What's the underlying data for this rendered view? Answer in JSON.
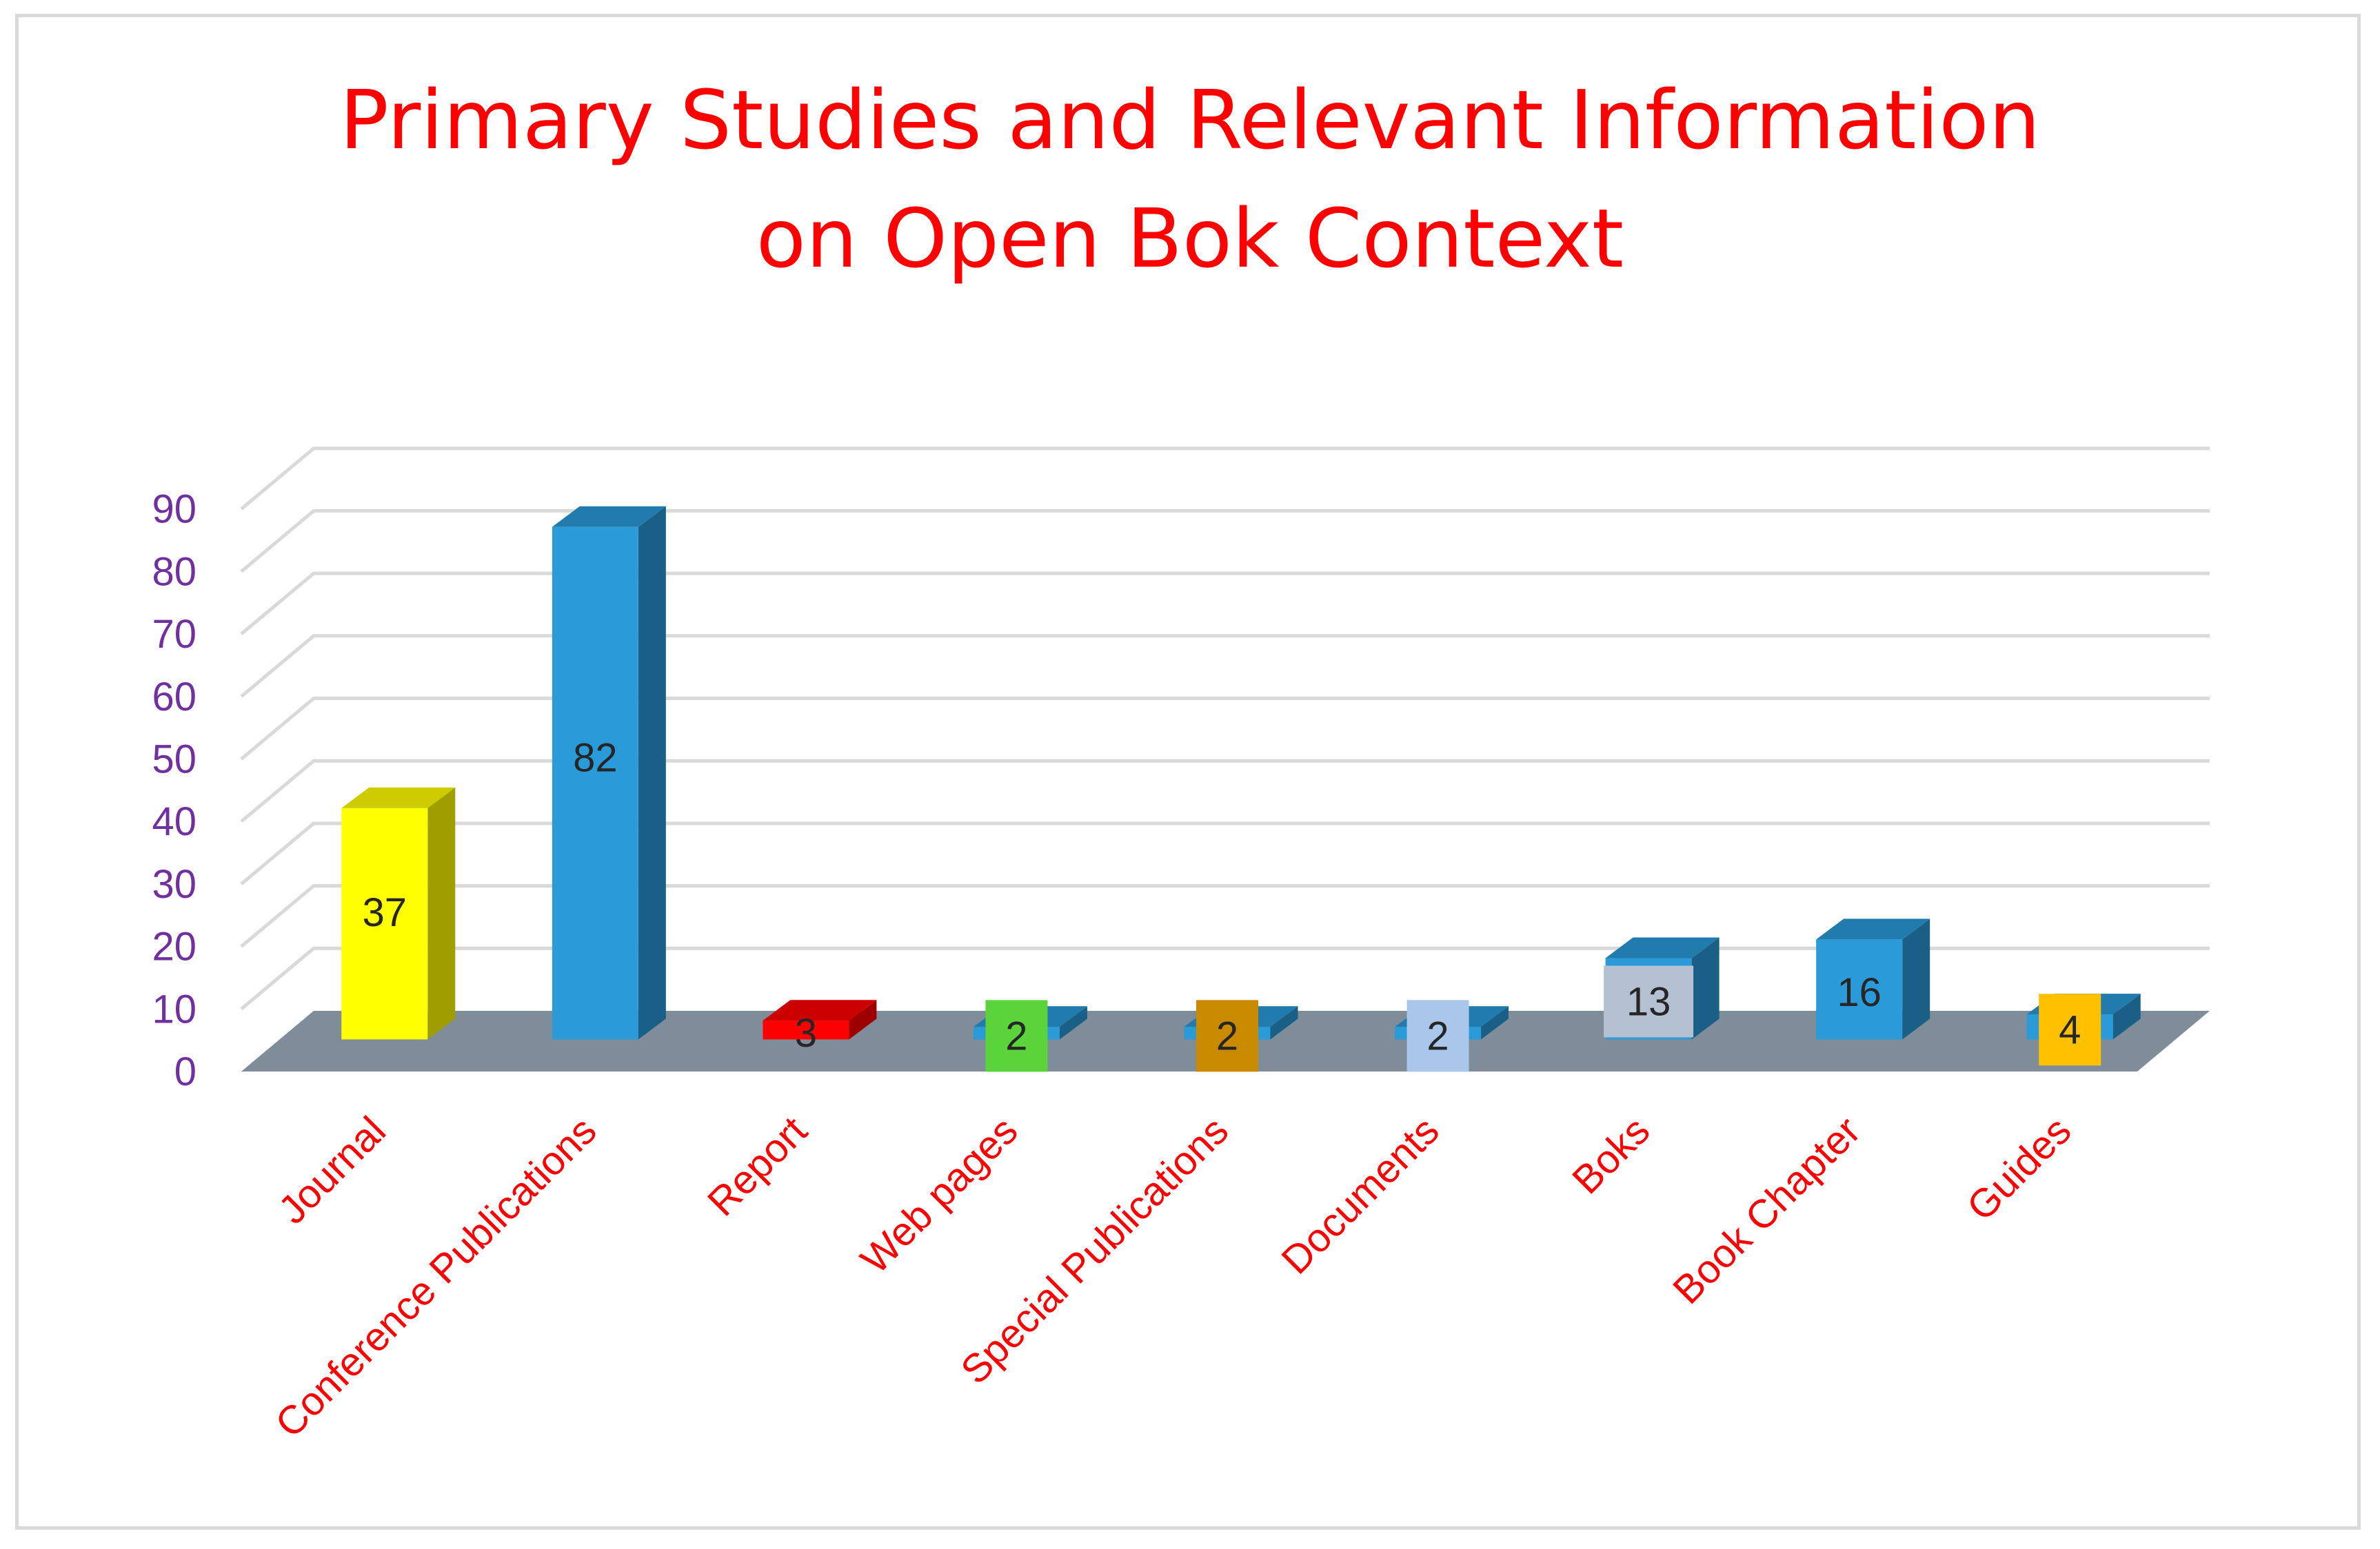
{
  "chart_data": {
    "type": "bar",
    "title_lines": [
      "Primary Studies and Relevant Information",
      "on Open Bok Context"
    ],
    "categories": [
      "Journal",
      "Conference Publications",
      "Report",
      "Web pages",
      "Special Publications",
      "Documents",
      "Boks",
      "Book Chapter",
      "Guides"
    ],
    "values": [
      37,
      82,
      3,
      2,
      2,
      2,
      13,
      16,
      4
    ],
    "bar_colors": [
      "#ffff00",
      "#2a9ad8",
      "#ff0000",
      "#2a9ad8",
      "#2a9ad8",
      "#2a9ad8",
      "#2a9ad8",
      "#2a9ad8",
      "#2a9ad8"
    ],
    "label_box_colors": [
      "",
      "",
      "",
      "#5ad43a",
      "#c98a00",
      "#a9c7ea",
      "#b4c1d2",
      "",
      "#ffc000"
    ],
    "y_ticks": [
      0,
      10,
      20,
      30,
      40,
      50,
      60,
      70,
      80,
      90
    ],
    "ylim": [
      0,
      90
    ],
    "xlabel": "",
    "ylabel": "",
    "grid": true,
    "legend": "none",
    "colors": {
      "title": "#ff0000",
      "category_labels": "#ff0000",
      "y_tick_labels": "#7030a0",
      "floor": "#7f8c99",
      "gridlines": "#d9d9d9"
    }
  }
}
